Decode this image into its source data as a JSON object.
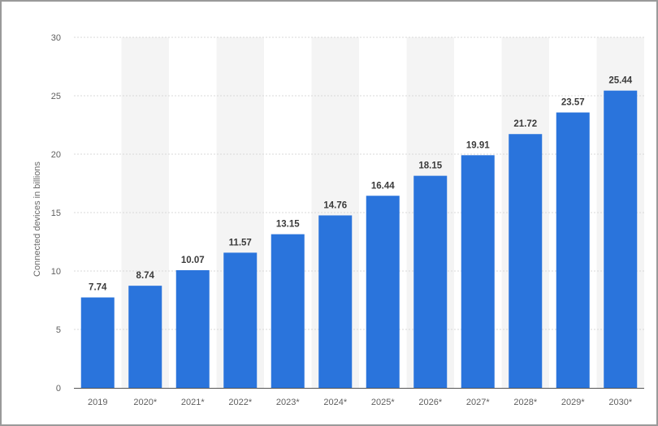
{
  "chart_data": {
    "type": "bar",
    "title": "",
    "xlabel": "",
    "ylabel": "Connected devices in billions",
    "categories": [
      "2019",
      "2020*",
      "2021*",
      "2022*",
      "2023*",
      "2024*",
      "2025*",
      "2026*",
      "2027*",
      "2028*",
      "2029*",
      "2030*"
    ],
    "values": [
      7.74,
      8.74,
      10.07,
      11.57,
      13.15,
      14.76,
      16.44,
      18.15,
      19.91,
      21.72,
      23.57,
      25.44
    ],
    "value_labels": [
      "7.74",
      "8.74",
      "10.07",
      "11.57",
      "13.15",
      "14.76",
      "16.44",
      "18.15",
      "19.91",
      "21.72",
      "23.57",
      "25.44"
    ],
    "ylim": [
      0,
      30
    ],
    "yticks": [
      0,
      5,
      10,
      15,
      20,
      25,
      30
    ],
    "grid": "horizontal dotted",
    "legend": "none",
    "bar_color": "#2a74dc",
    "band_color": "#f4f4f4",
    "grid_color": "#d8d8d8",
    "axis_color": "#555555"
  }
}
